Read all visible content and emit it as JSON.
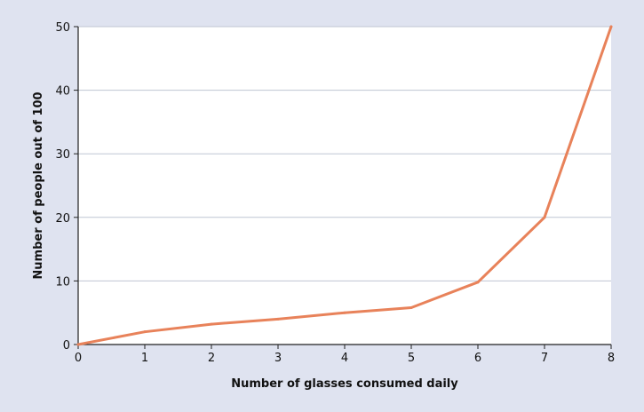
{
  "chart_data": {
    "type": "line",
    "title": "",
    "xlabel": "Number of glasses consumed daily",
    "ylabel": "Number of people out of 100",
    "x": [
      0,
      1,
      2,
      3,
      4,
      5,
      6,
      7,
      8
    ],
    "series": [
      {
        "values": [
          0,
          2,
          3.2,
          4,
          5,
          5.8,
          9.8,
          20,
          50
        ],
        "color": "#e8825a"
      }
    ],
    "xlim": [
      0,
      8
    ],
    "ylim": [
      0,
      50
    ],
    "xticks": [
      0,
      1,
      2,
      3,
      4,
      5,
      6,
      7,
      8
    ],
    "yticks": [
      0,
      10,
      20,
      30,
      40,
      50
    ],
    "grid": "horizontal",
    "legend": "none",
    "colors": {
      "background": "#dfe3f0",
      "plot_area": "#ffffff",
      "gridline": "#bfc5d3",
      "axis": "#222222"
    }
  }
}
